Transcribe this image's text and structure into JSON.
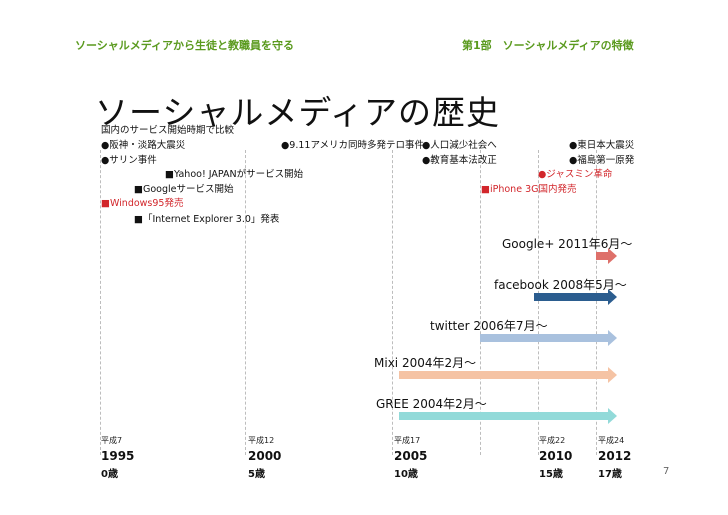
{
  "header": {
    "left": "ソーシャルメディアから生徒と教職員を守る",
    "right": "第1部　ソーシャルメディアの特徴"
  },
  "title": "ソーシャルメディアの歴史",
  "events": {
    "heading": "国内のサービス開始時期で比較",
    "hanshin": "●阪神・淡路大震災",
    "sarin": "●サリン事件",
    "yahoo": "■Yahoo! JAPANがサービス開始",
    "google": "■Googleサービス開始",
    "windows": "■Windows95発売",
    "ie": "■「Internet Explorer 3.0」発表",
    "sept11": "●9.11アメリカ同時多発テロ事件",
    "population": "●人口減少社会へ",
    "education": "●教育基本法改正",
    "iphone": "■iPhone 3G国内発売",
    "jasmine": "●ジャスミン革命",
    "earthquake": "●東日本大震災",
    "fukushima": "●福島第一原発"
  },
  "services": [
    {
      "name": "Google+",
      "label": "Google+ 2011年6月～",
      "color": "#de706a"
    },
    {
      "name": "facebook",
      "label": "facebook 2008年5月～",
      "color": "#2b5d8f"
    },
    {
      "name": "twitter",
      "label": "twitter 2006年7月～",
      "color": "#a9c1de"
    },
    {
      "name": "Mixi",
      "label": "Mixi 2004年2月～",
      "color": "#f5c3a4"
    },
    {
      "name": "GREE",
      "label": "GREE 2004年2月～",
      "color": "#92dad9"
    }
  ],
  "timeline": [
    {
      "era": "平成7",
      "year": "1995",
      "age": "0歳"
    },
    {
      "era": "平成12",
      "year": "2000",
      "age": "5歳"
    },
    {
      "era": "平成17",
      "year": "2005",
      "age": "10歳"
    },
    {
      "era": "平成22",
      "year": "2010",
      "age": "15歳"
    },
    {
      "era": "平成24",
      "year": "2012",
      "age": "17歳"
    }
  ],
  "page_number": "7"
}
